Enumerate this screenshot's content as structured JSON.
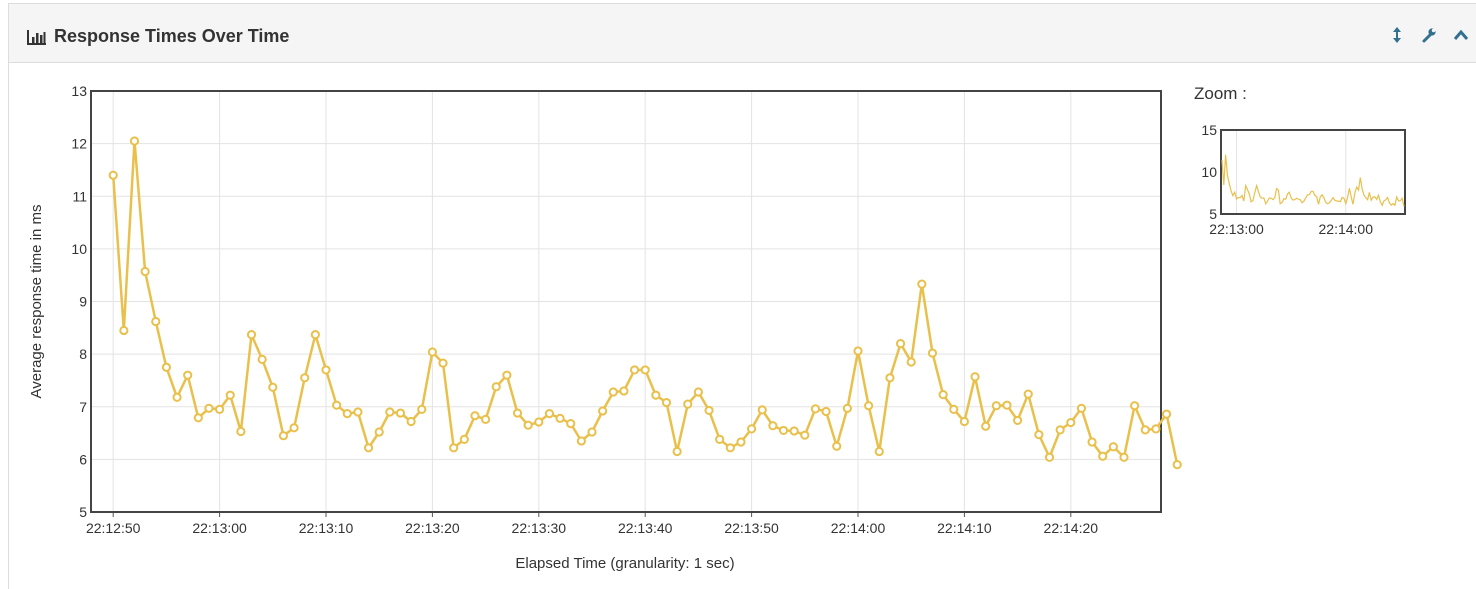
{
  "panel": {
    "title": "Response Times Over Time",
    "icons": [
      "bar-chart-icon",
      "resize-vertical-icon",
      "wrench-icon",
      "chevron-up-icon"
    ],
    "accent": "#31708f"
  },
  "zoom": {
    "label": "Zoom :"
  },
  "chart_data": [
    {
      "type": "line",
      "xlabel": "Elapsed Time (granularity: 1 sec)",
      "ylabel": "Average response time in ms",
      "ylim": [
        5,
        13
      ],
      "yticks": [
        "5",
        "6",
        "7",
        "8",
        "9",
        "10",
        "11",
        "12",
        "13"
      ],
      "xticks": [
        "22:12:50",
        "22:13:00",
        "22:13:10",
        "22:13:20",
        "22:13:30",
        "22:13:40",
        "22:13:50",
        "22:14:00",
        "22:14:10",
        "22:14:20"
      ],
      "grid": true,
      "color": "#e9c04b",
      "series": [
        {
          "values": [
            11.4,
            8.45,
            12.05,
            9.57,
            8.62,
            7.75,
            7.18,
            7.6,
            6.79,
            6.97,
            6.95,
            7.22,
            6.53,
            8.37,
            7.9,
            7.37,
            6.45,
            6.6,
            7.55,
            8.37,
            7.7,
            7.03,
            6.87,
            6.9,
            6.22,
            6.52,
            6.9,
            6.88,
            6.72,
            6.95,
            8.04,
            7.83,
            6.22,
            6.38,
            6.83,
            6.76,
            7.38,
            7.6,
            6.88,
            6.65,
            6.71,
            6.87,
            6.78,
            6.68,
            6.35,
            6.52,
            6.92,
            7.28,
            7.3,
            7.7,
            7.7,
            7.22,
            7.08,
            6.15,
            7.05,
            7.28,
            6.93,
            6.38,
            6.22,
            6.33,
            6.58,
            6.94,
            6.64,
            6.55,
            6.54,
            6.46,
            6.96,
            6.91,
            6.25,
            6.97,
            8.06,
            7.02,
            6.15,
            7.55,
            8.2,
            7.85,
            9.33,
            8.02,
            7.23,
            6.95,
            6.72,
            7.57,
            6.63,
            7.02,
            7.03,
            6.74,
            7.24,
            6.47,
            6.04,
            6.56,
            6.7,
            6.97,
            6.33,
            6.06,
            6.24,
            6.04,
            7.02,
            6.56,
            6.58,
            6.86,
            5.9
          ]
        }
      ]
    },
    {
      "type": "line",
      "title": "Zoom :",
      "ylim": [
        5,
        15
      ],
      "yticks": [
        "5",
        "10",
        "15"
      ],
      "xticks": [
        "22:13:00",
        "22:14:00"
      ],
      "grid": true,
      "color": "#e9c04b"
    }
  ]
}
